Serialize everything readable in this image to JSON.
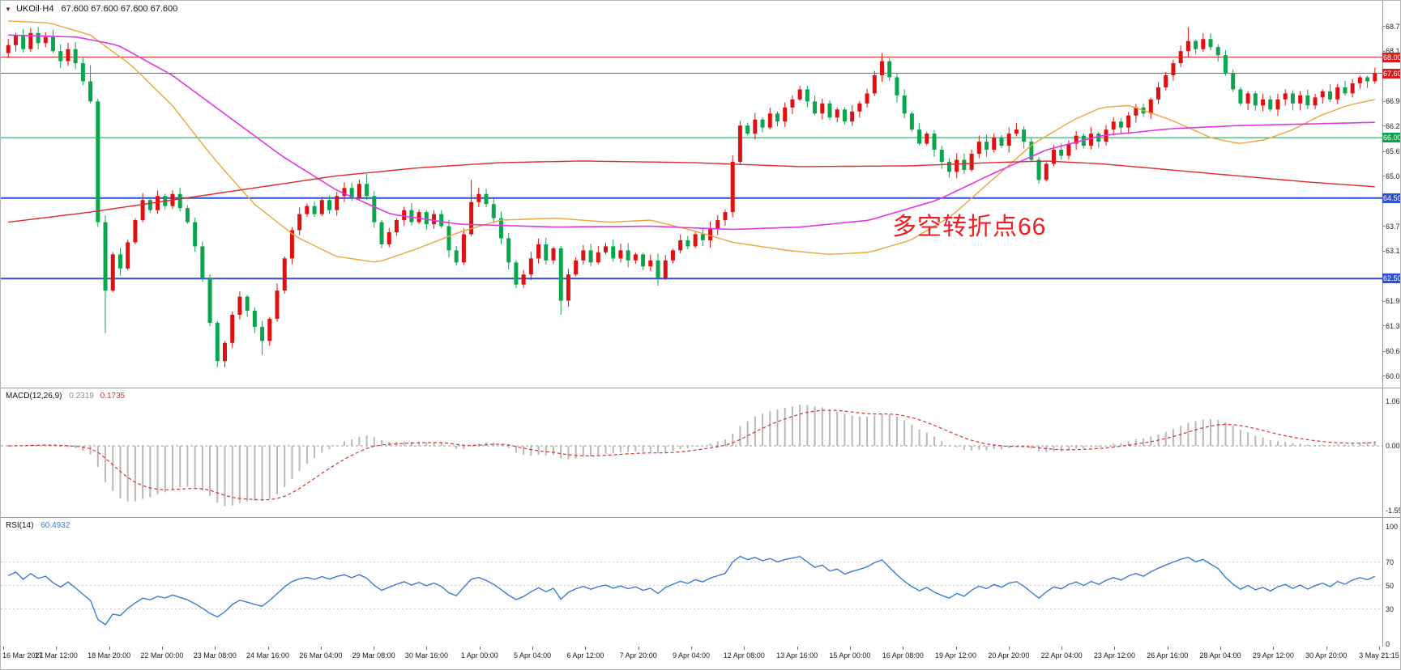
{
  "header": {
    "marker": "▼",
    "title": "UKOil·H4",
    "ohlc": "67.600 67.600 67.600 67.600"
  },
  "chart_data": [
    {
      "type": "candlestick",
      "symbol": "UKOil",
      "timeframe": "H4",
      "last_price": 67.6,
      "ylim": [
        59.79,
        69.4
      ],
      "y_ticks": [
        68.76,
        68.145,
        67.53,
        66.9,
        66.285,
        65.655,
        65.04,
        64.425,
        63.795,
        63.18,
        62.55,
        61.935,
        61.32,
        60.69,
        60.075
      ],
      "x_labels": [
        "16 Mar 2021",
        "17 Mar 12:00",
        "18 Mar 20:00",
        "22 Mar 00:00",
        "23 Mar 08:00",
        "24 Mar 16:00",
        "26 Mar 04:00",
        "29 Mar 08:00",
        "30 Mar 16:00",
        "1 Apr 00:00",
        "5 Apr 04:00",
        "6 Apr 12:00",
        "7 Apr 20:00",
        "9 Apr 04:00",
        "12 Apr 08:00",
        "13 Apr 16:00",
        "15 Apr 00:00",
        "16 Apr 08:00",
        "19 Apr 12:00",
        "20 Apr 20:00",
        "22 Apr 04:00",
        "23 Apr 12:00",
        "26 Apr 16:00",
        "28 Apr 04:00",
        "29 Apr 12:00",
        "30 Apr 20:00",
        "3 May 21:15"
      ],
      "up_color": "#e01010",
      "down_color": "#0aa64e",
      "first_open": 68.1,
      "closes": [
        68.3,
        68.55,
        68.2,
        68.6,
        68.35,
        68.5,
        68.15,
        67.9,
        68.2,
        67.85,
        67.4,
        66.9,
        63.9,
        62.2,
        63.1,
        62.75,
        63.4,
        63.95,
        64.45,
        64.2,
        64.55,
        64.3,
        64.6,
        64.25,
        63.9,
        63.3,
        62.5,
        61.4,
        60.45,
        60.9,
        61.6,
        62.05,
        61.7,
        61.3,
        60.95,
        61.5,
        62.2,
        63.0,
        63.7,
        64.1,
        64.3,
        64.1,
        64.45,
        64.2,
        64.55,
        64.75,
        64.5,
        64.85,
        64.55,
        63.9,
        63.35,
        63.65,
        63.95,
        64.2,
        63.9,
        64.15,
        63.85,
        64.1,
        63.8,
        63.2,
        62.9,
        63.6,
        64.4,
        64.6,
        64.35,
        64.0,
        63.5,
        62.9,
        62.35,
        62.6,
        63.0,
        63.35,
        62.95,
        63.25,
        61.95,
        62.6,
        62.95,
        63.2,
        62.9,
        63.15,
        63.3,
        63.0,
        63.2,
        62.95,
        63.1,
        62.8,
        62.95,
        62.5,
        62.95,
        63.2,
        63.45,
        63.3,
        63.6,
        63.45,
        63.75,
        63.95,
        64.15,
        65.4,
        66.3,
        66.1,
        66.45,
        66.25,
        66.6,
        66.4,
        66.75,
        66.95,
        67.2,
        66.9,
        66.6,
        66.85,
        66.5,
        66.7,
        66.4,
        66.65,
        66.85,
        67.1,
        67.55,
        67.9,
        67.5,
        67.05,
        66.6,
        66.2,
        65.85,
        66.1,
        65.7,
        65.4,
        65.15,
        65.45,
        65.2,
        65.6,
        65.9,
        65.7,
        66.0,
        65.8,
        66.1,
        66.2,
        65.9,
        65.45,
        64.95,
        65.35,
        65.7,
        65.55,
        65.85,
        66.05,
        65.8,
        66.1,
        65.9,
        66.2,
        66.4,
        66.25,
        66.55,
        66.75,
        66.6,
        66.95,
        67.25,
        67.55,
        67.85,
        68.15,
        68.4,
        68.2,
        68.45,
        68.25,
        68.05,
        67.6,
        67.2,
        66.85,
        67.1,
        66.8,
        66.95,
        66.7,
        66.95,
        67.1,
        66.85,
        67.05,
        66.8,
        67.0,
        67.15,
        66.95,
        67.25,
        67.1,
        67.35,
        67.5,
        67.4,
        67.6
      ],
      "wick_overrides": {
        "11": {
          "high": 67.8
        },
        "13": {
          "low": 61.15
        },
        "28": {
          "low": 60.3
        },
        "34": {
          "low": 60.6
        },
        "48": {
          "high": 65.1
        },
        "62": {
          "high": 64.95
        },
        "74": {
          "low": 61.6
        },
        "117": {
          "high": 68.1
        },
        "158": {
          "high": 68.75
        },
        "160": {
          "high": 68.6
        }
      },
      "levels": [
        {
          "price": 68.0,
          "label": "68.000",
          "color": "#d61c1c",
          "line_width": 1,
          "badge_bg": "#d61c1c"
        },
        {
          "price": 67.6,
          "label": "67.600",
          "color": "#6b6b6b",
          "line_width": 1,
          "badge_bg": "#d61c1c"
        },
        {
          "price": 66.0,
          "label": "66.000",
          "color": "#0da04a",
          "line_width": 1,
          "badge_bg": "#0da04a"
        },
        {
          "price": 64.5,
          "label": "64.500",
          "color": "#2d4fd2",
          "line_width": 2,
          "badge_bg": "#2d4fd2"
        },
        {
          "price": 62.5,
          "label": "62.500",
          "color": "#2d4fd2",
          "line_width": 2,
          "badge_bg": "#2d4fd2"
        }
      ],
      "moving_averages": [
        {
          "name": "fast-orange-ma",
          "color": "#e9a63b",
          "width": 1.4,
          "points": [
            [
              0,
              68.9
            ],
            [
              0.03,
              68.85
            ],
            [
              0.06,
              68.55
            ],
            [
              0.09,
              67.8
            ],
            [
              0.12,
              66.8
            ],
            [
              0.15,
              65.5
            ],
            [
              0.18,
              64.35
            ],
            [
              0.21,
              63.55
            ],
            [
              0.24,
              63.05
            ],
            [
              0.27,
              62.9
            ],
            [
              0.3,
              63.25
            ],
            [
              0.33,
              63.65
            ],
            [
              0.36,
              63.95
            ],
            [
              0.4,
              64.0
            ],
            [
              0.44,
              63.9
            ],
            [
              0.47,
              63.95
            ],
            [
              0.5,
              63.7
            ],
            [
              0.53,
              63.4
            ],
            [
              0.57,
              63.2
            ],
            [
              0.6,
              63.1
            ],
            [
              0.63,
              63.15
            ],
            [
              0.66,
              63.45
            ],
            [
              0.69,
              64.05
            ],
            [
              0.72,
              64.95
            ],
            [
              0.75,
              65.85
            ],
            [
              0.78,
              66.45
            ],
            [
              0.8,
              66.75
            ],
            [
              0.82,
              66.8
            ],
            [
              0.85,
              66.45
            ],
            [
              0.88,
              66.0
            ],
            [
              0.9,
              65.85
            ],
            [
              0.92,
              65.95
            ],
            [
              0.94,
              66.2
            ],
            [
              0.96,
              66.55
            ],
            [
              0.98,
              66.8
            ],
            [
              1,
              66.95
            ]
          ]
        },
        {
          "name": "mid-magenta-ma",
          "color": "#e435e4",
          "width": 1.6,
          "points": [
            [
              0,
              68.55
            ],
            [
              0.05,
              68.5
            ],
            [
              0.08,
              68.3
            ],
            [
              0.12,
              67.55
            ],
            [
              0.16,
              66.55
            ],
            [
              0.2,
              65.55
            ],
            [
              0.24,
              64.7
            ],
            [
              0.28,
              64.1
            ],
            [
              0.33,
              63.85
            ],
            [
              0.4,
              63.78
            ],
            [
              0.47,
              63.8
            ],
            [
              0.53,
              63.72
            ],
            [
              0.58,
              63.78
            ],
            [
              0.63,
              63.95
            ],
            [
              0.68,
              64.45
            ],
            [
              0.72,
              65.1
            ],
            [
              0.76,
              65.7
            ],
            [
              0.8,
              66.05
            ],
            [
              0.85,
              66.22
            ],
            [
              0.9,
              66.3
            ],
            [
              1,
              66.38
            ]
          ]
        },
        {
          "name": "slow-red-ma",
          "color": "#e02828",
          "width": 1.4,
          "points": [
            [
              0,
              63.9
            ],
            [
              0.06,
              64.15
            ],
            [
              0.12,
              64.45
            ],
            [
              0.18,
              64.75
            ],
            [
              0.24,
              65.05
            ],
            [
              0.3,
              65.25
            ],
            [
              0.36,
              65.38
            ],
            [
              0.42,
              65.42
            ],
            [
              0.5,
              65.38
            ],
            [
              0.58,
              65.28
            ],
            [
              0.66,
              65.3
            ],
            [
              0.72,
              65.38
            ],
            [
              0.76,
              65.42
            ],
            [
              0.8,
              65.35
            ],
            [
              0.85,
              65.2
            ],
            [
              0.9,
              65.05
            ],
            [
              0.95,
              64.9
            ],
            [
              1,
              64.78
            ]
          ]
        }
      ],
      "annotation": {
        "text": "多空转折点66",
        "color": "#ee1d23"
      }
    },
    {
      "type": "macd",
      "label": "MACD(12,26,9)",
      "fast": 12,
      "slow": 26,
      "signal": 9,
      "macd_value": "0.2319",
      "signal_value": "0.1735",
      "y_ticks": [
        "1.0639",
        "0.00",
        "-1.5536"
      ],
      "ylim": [
        -1.706,
        1.396
      ],
      "clamp": [
        -1.5536,
        1.0639
      ],
      "histogram_color": "#b8b8b8",
      "signal_color": "#d93030"
    },
    {
      "type": "rsi",
      "label": "RSI(14)",
      "period": 14,
      "value": "60.4932",
      "y_ticks": [
        100,
        70,
        50,
        30,
        0
      ],
      "dashed_levels": [
        70,
        50,
        30
      ],
      "ylim": [
        -2.07,
        108.3
      ],
      "line_color": "#3a7bd5"
    }
  ]
}
